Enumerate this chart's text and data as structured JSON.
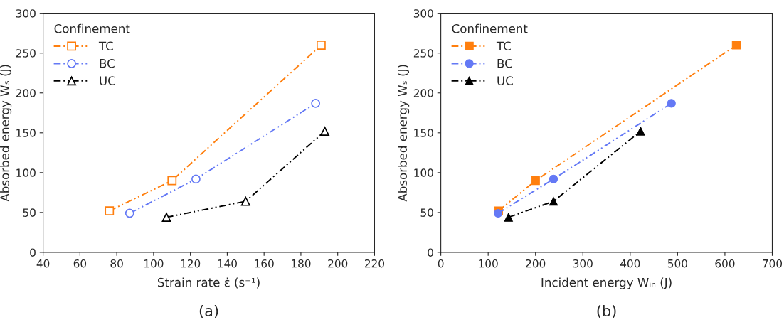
{
  "chart_data": [
    {
      "type": "line",
      "xlabel": "Strain rate ε̇ (s⁻¹)",
      "ylabel": "Absorbed energy Wₛ (J)",
      "legend_title": "Confinement",
      "legend": "top left",
      "line_style": "dashed",
      "annotations": [
        "(a)"
      ],
      "xlim": [
        40,
        220
      ],
      "xticks": [
        40,
        60,
        80,
        100,
        120,
        140,
        160,
        180,
        200,
        220
      ],
      "ylim": [
        0,
        300
      ],
      "yticks": [
        0,
        50,
        100,
        150,
        200,
        250,
        300
      ],
      "grid": false,
      "series": [
        {
          "name": "TC",
          "color": "#ff7f0e",
          "marker": "square",
          "x": [
            76,
            110,
            191
          ],
          "values": [
            52,
            90,
            260
          ]
        },
        {
          "name": "BC",
          "color": "#6479f5",
          "marker": "circle",
          "x": [
            87,
            123,
            188
          ],
          "values": [
            49,
            92,
            187
          ]
        },
        {
          "name": "UC",
          "color": "#000000",
          "marker": "triangle",
          "x": [
            107,
            150,
            193
          ],
          "values": [
            44,
            64,
            152
          ]
        }
      ]
    },
    {
      "type": "line",
      "xlabel": "Incident energy Wᵢₙ (J)",
      "ylabel": "Absorbed energy Wₛ (J)",
      "legend_title": "Confinement",
      "legend": "top left",
      "line_style": "dashed",
      "annotations": [
        "(b)"
      ],
      "xlim": [
        0,
        700
      ],
      "xticks": [
        0,
        100,
        200,
        300,
        400,
        500,
        600,
        700
      ],
      "ylim": [
        0,
        300
      ],
      "yticks": [
        0,
        50,
        100,
        150,
        200,
        250,
        300
      ],
      "grid": false,
      "series": [
        {
          "name": "TC",
          "color": "#ff7f0e",
          "marker": "square",
          "x": [
            122,
            200,
            624
          ],
          "values": [
            52,
            90,
            260
          ]
        },
        {
          "name": "BC",
          "color": "#6479f5",
          "marker": "circle",
          "x": [
            121,
            238,
            487
          ],
          "values": [
            49,
            92,
            187
          ]
        },
        {
          "name": "UC",
          "color": "#000000",
          "marker": "triangle",
          "x": [
            143,
            238,
            422
          ],
          "values": [
            44,
            64,
            152
          ]
        }
      ]
    }
  ]
}
